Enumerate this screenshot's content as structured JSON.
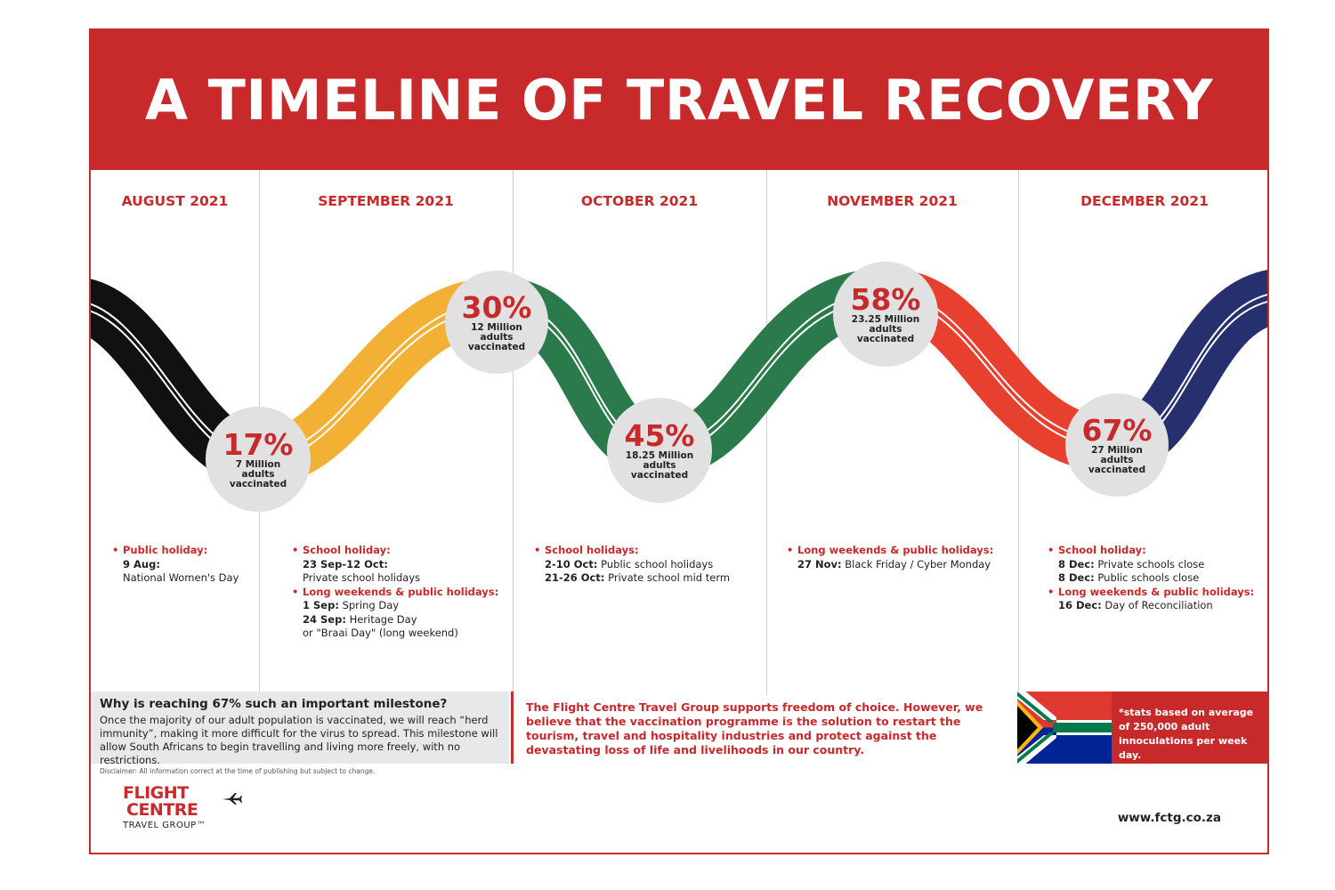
{
  "title": "A TIMELINE OF TRAVEL RECOVERY",
  "months": [
    "AUGUST 2021",
    "SEPTEMBER 2021",
    "OCTOBER 2021",
    "NOVEMBER 2021",
    "DECEMBER 2021"
  ],
  "wave_colors": [
    "#111111",
    "#f2b134",
    "#2a7a4b",
    "#e8402f",
    "#27306e"
  ],
  "milestones": [
    {
      "pct": "17%",
      "line1": "7 Million",
      "line2": "adults",
      "line3": "vaccinated"
    },
    {
      "pct": "30%",
      "line1": "12 Million",
      "line2": "adults",
      "line3": "vaccinated"
    },
    {
      "pct": "45%",
      "line1": "18.25 Million",
      "line2": "adults",
      "line3": "vaccinated"
    },
    {
      "pct": "58%",
      "line1": "23.25 Million",
      "line2": "adults",
      "line3": "vaccinated"
    },
    {
      "pct": "67%",
      "line1": "27 Million",
      "line2": "adults",
      "line3": "vaccinated"
    }
  ],
  "events": {
    "aug": {
      "cat1": "Public holiday:",
      "d1": "9 Aug:",
      "t1": "National Women's Day"
    },
    "sep": {
      "cat1": "School holiday:",
      "d1": "23 Sep-12 Oct:",
      "t1": "Private school holidays",
      "cat2": "Long weekends & public holidays:",
      "d2": "1 Sep:",
      "t2": " Spring Day",
      "d3": "24 Sep:",
      "t3": " Heritage Day",
      "t4": "or \"Braai Day\" (long weekend)"
    },
    "oct": {
      "cat1": "School holidays:",
      "d1": "2-10 Oct:",
      "t1": " Public school holidays",
      "d2": "21-26 Oct:",
      "t2": " Private school mid term"
    },
    "nov": {
      "cat1": "Long weekends & public holidays:",
      "d1": "27 Nov:",
      "t1": " Black Friday  / Cyber Monday"
    },
    "dec": {
      "cat1": "School holiday:",
      "d1": "8 Dec:",
      "t1": " Private schools close",
      "d2": "8 Dec:",
      "t2": " Public schools close",
      "cat2": "Long weekends & public holidays:",
      "d3": "16 Dec:",
      "t3": " Day of Reconciliation"
    }
  },
  "why": {
    "question": "Why is reaching 67% such an important milestone?",
    "answer": "Once the majority of our adult population is vaccinated, we will reach “herd immunity”, making it more difficult for the virus to spread. This milestone will allow South Africans to begin travelling and living more freely, with no restrictions."
  },
  "statement": "The Flight Centre Travel Group supports freedom of choice. However, we believe that the vaccination programme is the solution to restart the tourism, travel and hospitality industries and protect against the devastating loss of life and livelihoods in our country.",
  "stats_note": "*stats based on average of 250,000 adult innoculations per week day.",
  "disclaimer": "Disclaimer: All information correct at the time of publishing but subject to change.",
  "logo": {
    "line1": "FLIGHT",
    "line2": "CENTRE",
    "line3": "TRAVEL GROUP™"
  },
  "url": "www.fctg.co.za",
  "brand_red": "#c8292b"
}
